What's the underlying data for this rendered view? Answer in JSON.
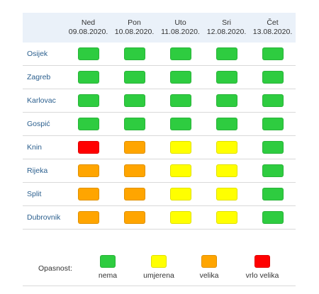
{
  "colors": {
    "nema": "#2ecc40",
    "umjerena": "#ffff00",
    "velika": "#ffa500",
    "vrlo_velika": "#ff0000"
  },
  "days": [
    {
      "day": "Ned",
      "date": "09.08.2020."
    },
    {
      "day": "Pon",
      "date": "10.08.2020."
    },
    {
      "day": "Uto",
      "date": "11.08.2020."
    },
    {
      "day": "Sri",
      "date": "12.08.2020."
    },
    {
      "day": "Čet",
      "date": "13.08.2020."
    }
  ],
  "rows": [
    {
      "city": "Osijek",
      "levels": [
        "nema",
        "nema",
        "nema",
        "nema",
        "nema"
      ]
    },
    {
      "city": "Zagreb",
      "levels": [
        "nema",
        "nema",
        "nema",
        "nema",
        "nema"
      ]
    },
    {
      "city": "Karlovac",
      "levels": [
        "nema",
        "nema",
        "nema",
        "nema",
        "nema"
      ]
    },
    {
      "city": "Gospić",
      "levels": [
        "nema",
        "nema",
        "nema",
        "nema",
        "nema"
      ]
    },
    {
      "city": "Knin",
      "levels": [
        "vrlo_velika",
        "velika",
        "umjerena",
        "umjerena",
        "nema"
      ]
    },
    {
      "city": "Rijeka",
      "levels": [
        "velika",
        "velika",
        "umjerena",
        "umjerena",
        "nema"
      ]
    },
    {
      "city": "Split",
      "levels": [
        "velika",
        "velika",
        "umjerena",
        "umjerena",
        "nema"
      ]
    },
    {
      "city": "Dubrovnik",
      "levels": [
        "velika",
        "velika",
        "umjerena",
        "umjerena",
        "nema"
      ]
    }
  ],
  "legend": {
    "title": "Opasnost:",
    "items": [
      {
        "key": "nema",
        "label": "nema"
      },
      {
        "key": "umjerena",
        "label": "umjerena"
      },
      {
        "key": "velika",
        "label": "velika"
      },
      {
        "key": "vrlo_velika",
        "label": "vrlo velika"
      }
    ]
  }
}
